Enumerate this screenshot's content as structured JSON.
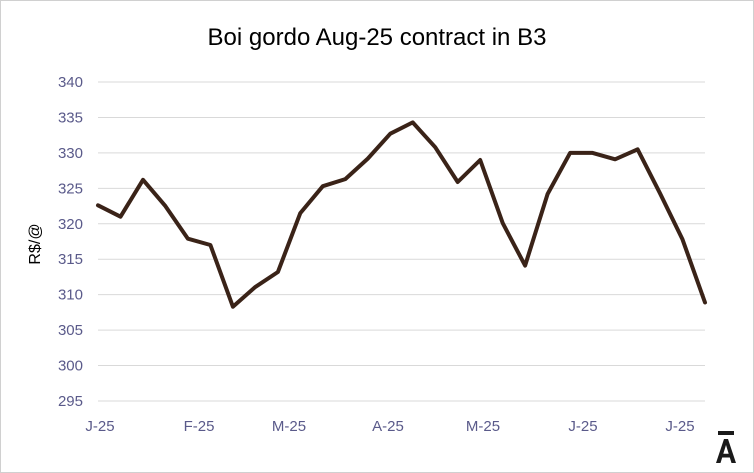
{
  "chart_data": {
    "type": "line",
    "title": "Boi gordo Aug-25 contract in B3",
    "xlabel": "",
    "ylabel": "R$/@",
    "ylim": [
      295,
      340
    ],
    "yticks": [
      295,
      300,
      305,
      310,
      315,
      320,
      325,
      330,
      335,
      340
    ],
    "grid": true,
    "x_tick_labels": [
      "J-25",
      "F-25",
      "M-25",
      "A-25",
      "M-25",
      "J-25",
      "J-25"
    ],
    "series": [
      {
        "color": "#3a2318",
        "values": [
          322.6,
          321.0,
          326.2,
          322.5,
          317.9,
          317.0,
          308.3,
          311.1,
          313.2,
          321.5,
          325.3,
          326.3,
          329.2,
          332.7,
          334.3,
          330.8,
          325.9,
          329.0,
          320.1,
          314.1,
          324.2,
          330.0,
          330.0,
          329.1,
          330.5,
          324.3,
          317.8,
          308.9
        ]
      }
    ]
  },
  "logo": {
    "glyph": "Ā",
    "color": "#1a1a1a"
  }
}
